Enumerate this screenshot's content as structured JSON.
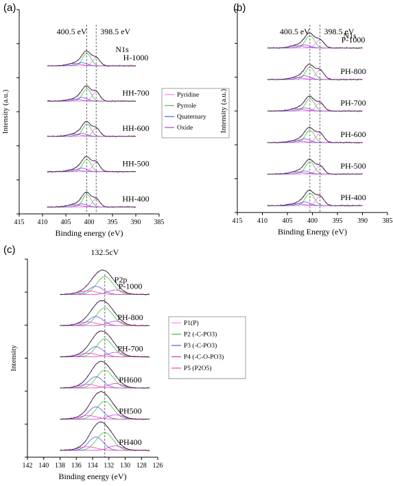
{
  "chart_data": [
    {
      "panel": "(a)",
      "type": "line",
      "xlabel": "Binding energy (eV)",
      "ylabel": "Intensity (a.u.)",
      "xlim": [
        415,
        385
      ],
      "x_ticks": [
        "415",
        "410",
        "405",
        "400",
        "395",
        "390",
        "385"
      ],
      "spectrum_label": "N1s",
      "reference_lines": [
        "400.5 eV",
        "398.5 eV"
      ],
      "legend": [
        "Pyridine",
        "Pyrrole",
        "Quaternary",
        "Oxide"
      ],
      "legend_colors": [
        "#ff77ee",
        "#44bb44",
        "#5555ee",
        "#cc33cc"
      ],
      "samples": [
        "H-1000",
        "HH-700",
        "HH-600",
        "HH-500",
        "HH-400"
      ]
    },
    {
      "panel": "(b)",
      "type": "line",
      "xlabel": "Binding Energy (eV)",
      "ylabel": "Intensity (a.u.)",
      "xlim": [
        415,
        385
      ],
      "x_ticks": [
        "415",
        "410",
        "405",
        "400",
        "395",
        "390",
        "385"
      ],
      "spectrum_label": "N1s",
      "reference_lines": [
        "400.5 eV",
        "398.5 eV"
      ],
      "samples": [
        "P-1000",
        "PH-800",
        "PH-700",
        "PH-600",
        "PH-500",
        "PH-400"
      ]
    },
    {
      "panel": "(c)",
      "type": "line",
      "xlabel": "Binding energy (eV)",
      "ylabel": "Intensity",
      "xlim": [
        142,
        126
      ],
      "x_ticks": [
        "142",
        "140",
        "138",
        "136",
        "134",
        "132",
        "130",
        "128",
        "126"
      ],
      "spectrum_label": "P2p",
      "reference_lines": [
        "132.5cV"
      ],
      "legend": [
        "P1(P)",
        "P2 (-C-PO3)",
        "P3 (-C-PO3)",
        "P4 (-C-O-PO3)",
        "P5 (P2O5)"
      ],
      "legend_colors": [
        "#ff88ee",
        "#44bb44",
        "#5555ee",
        "#cc33cc",
        "#ee44aa"
      ],
      "samples": [
        "P-1000",
        "PH-800",
        "PH-700",
        "PH600",
        "PH500",
        "PH400"
      ]
    }
  ]
}
